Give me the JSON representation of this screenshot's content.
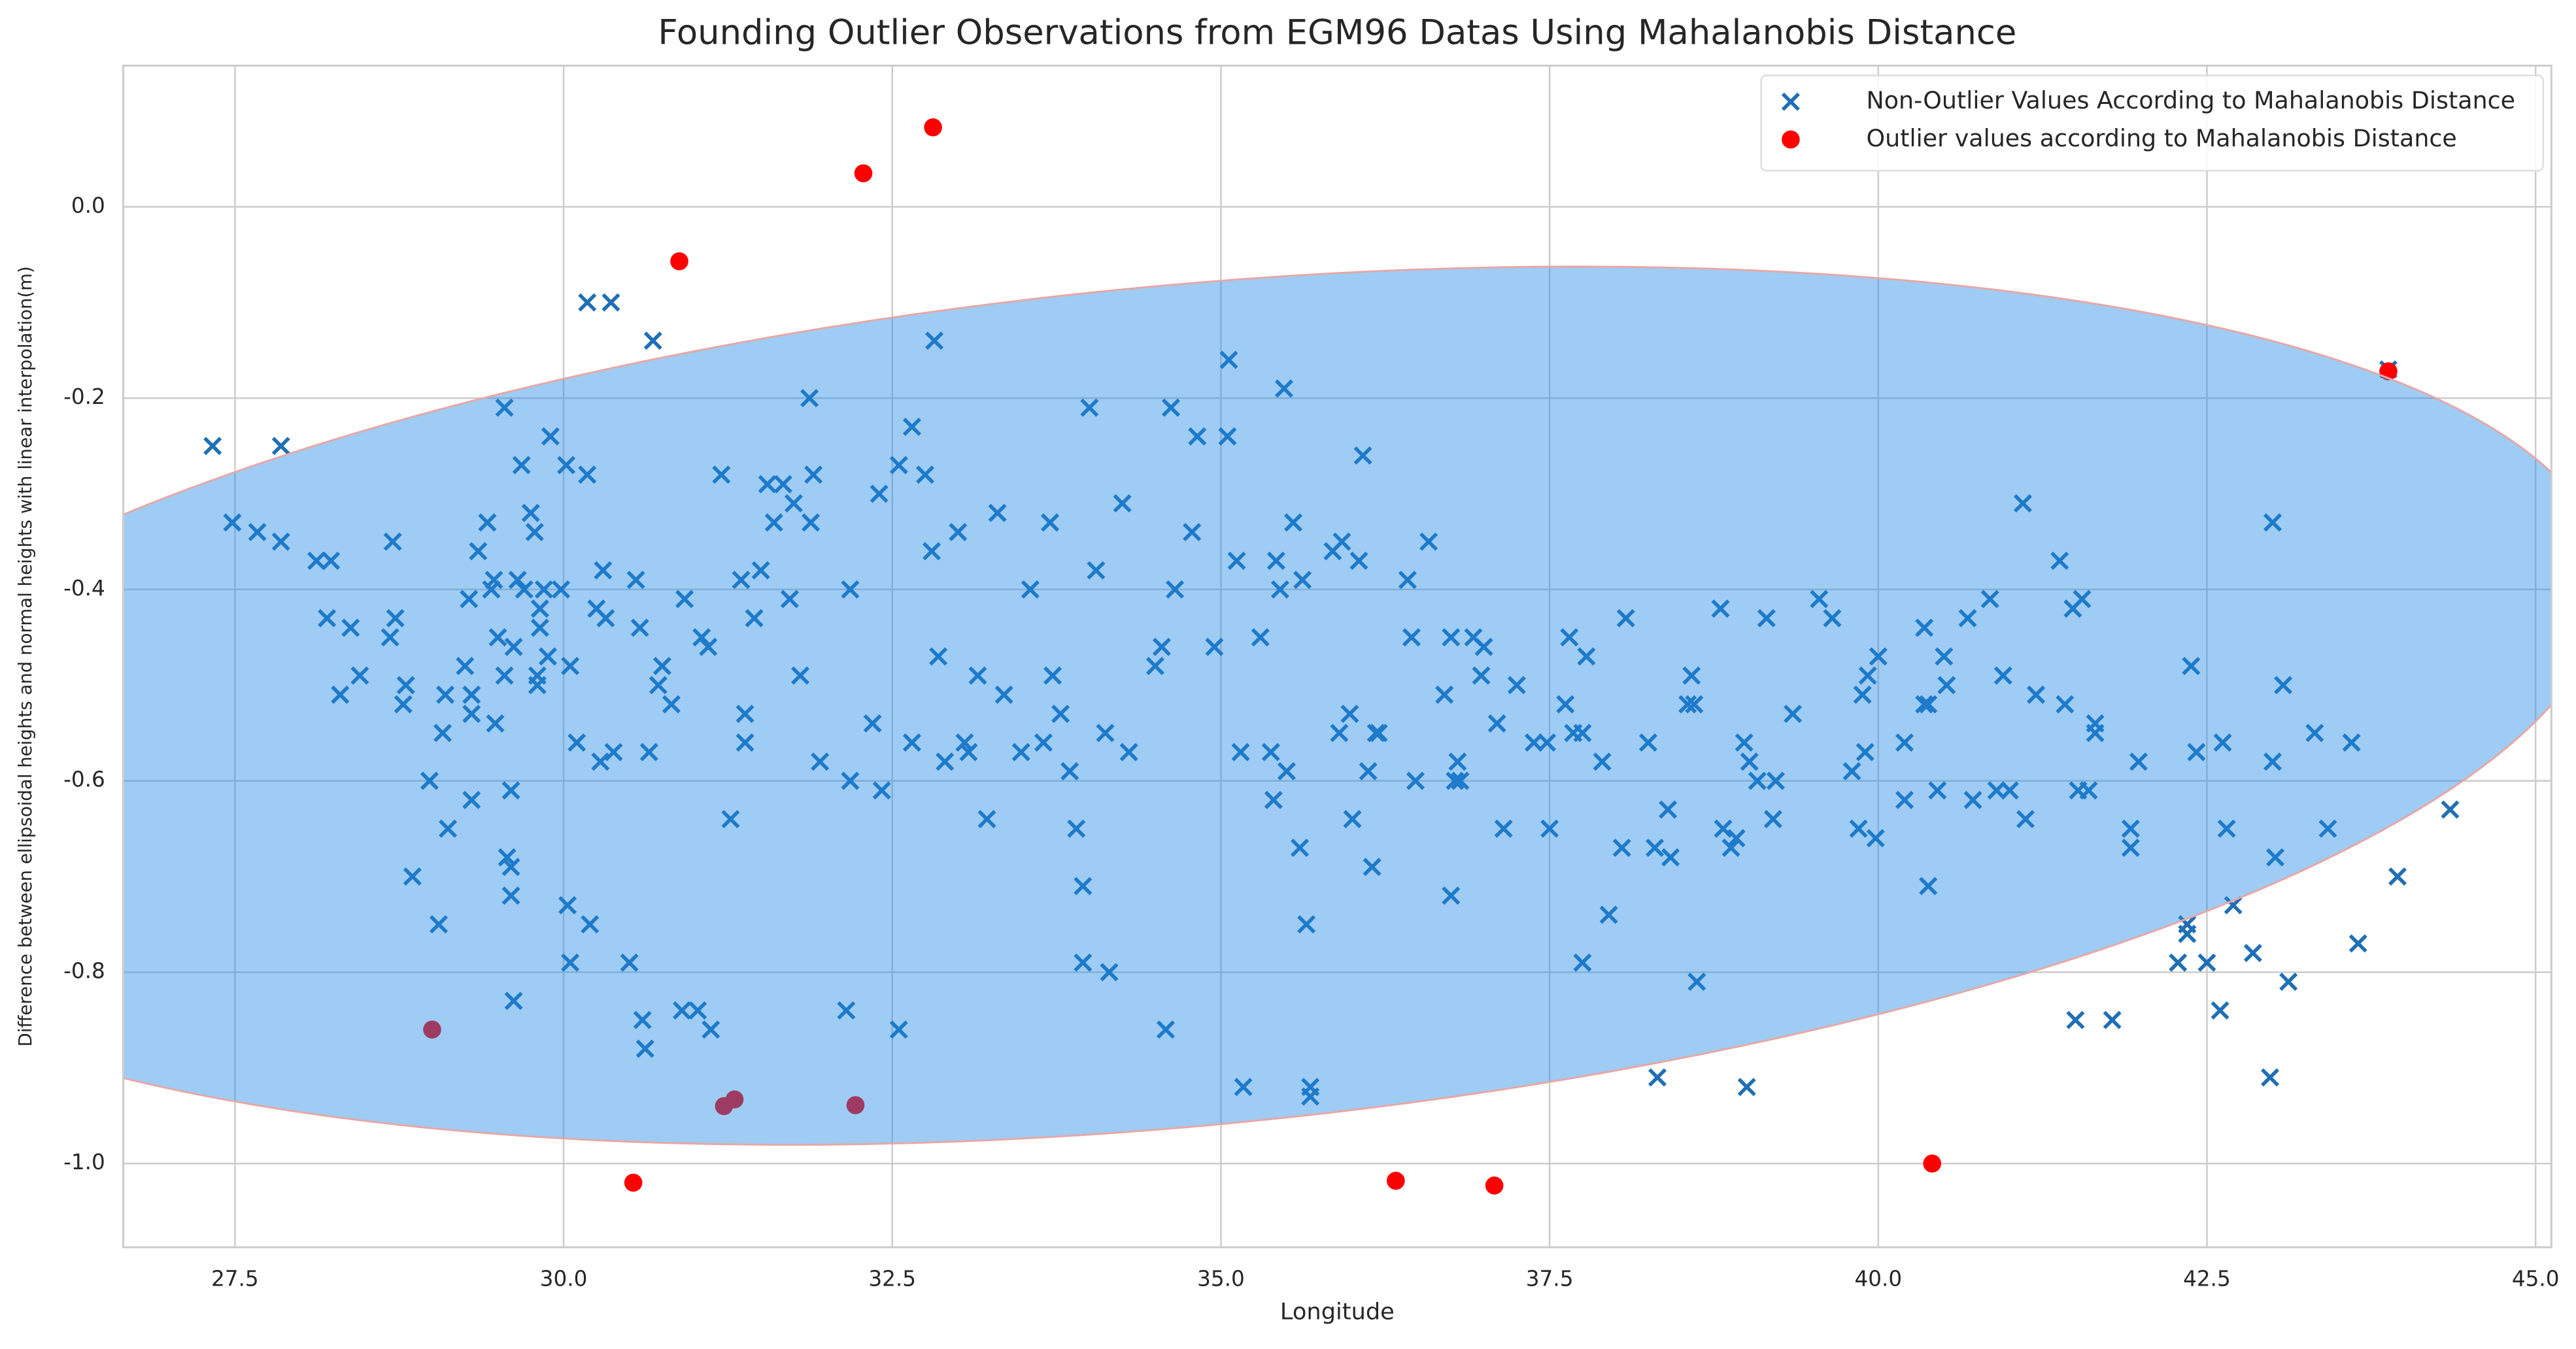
{
  "chart_data": {
    "type": "scatter",
    "title": "Founding Outlier Observations from EGM96 Datas Using Mahalanobis Distance",
    "xlabel": "Longitude",
    "ylabel": "Difference between ellipsoidal heights and normal heights with linear interpolation(m)",
    "xlim": [
      26.65,
      45.12
    ],
    "ylim": [
      -1.0875,
      0.1475
    ],
    "xticks": [
      27.5,
      {
        "value": 30,
        "label": "30.0"
      },
      32.5,
      {
        "value": 35,
        "label": "35.0"
      },
      37.5,
      {
        "value": 40,
        "label": "40.0"
      },
      42.5,
      {
        "value": 45,
        "label": "45.0"
      }
    ],
    "yticks": [
      {
        "value": 0,
        "label": "0.0"
      },
      -0.2,
      -0.4,
      -0.6,
      -0.8,
      {
        "value": -1,
        "label": "-1.0"
      }
    ],
    "grid": true,
    "legend": "upper right",
    "series": [
      {
        "name": "Non-Outlier Values According to Mahalanobis Distance",
        "color": "#1f6fb5",
        "marker": "x",
        "x": [
          27.33,
          27.48,
          27.67,
          27.85,
          27.85,
          28.12,
          28.2,
          28.23,
          28.3,
          28.38,
          28.45,
          28.68,
          28.7,
          28.72,
          28.78,
          28.8,
          28.85,
          28.98,
          29.05,
          29.08,
          29.1,
          29.12,
          29.25,
          29.28,
          29.3,
          29.3,
          29.3,
          29.35,
          29.42,
          29.45,
          29.47,
          29.48,
          29.5,
          29.55,
          29.55,
          29.57,
          29.6,
          29.6,
          29.6,
          29.62,
          29.62,
          29.65,
          29.68,
          29.7,
          29.75,
          29.78,
          29.8,
          29.8,
          29.82,
          29.82,
          29.85,
          29.88,
          29.9,
          29.98,
          30.02,
          30.03,
          30.05,
          30.05,
          30.1,
          30.18,
          30.18,
          30.2,
          30.25,
          30.28,
          30.3,
          30.32,
          30.36,
          30.38,
          30.5,
          30.55,
          30.58,
          30.6,
          30.62,
          30.65,
          30.68,
          30.72,
          30.75,
          30.82,
          30.9,
          30.92,
          31.02,
          31.05,
          31.1,
          31.12,
          31.2,
          31.27,
          31.35,
          31.38,
          31.38,
          31.45,
          31.5,
          31.55,
          31.6,
          31.67,
          31.72,
          31.75,
          31.8,
          31.87,
          31.88,
          31.9,
          31.95,
          32.15,
          32.18,
          32.18,
          32.35,
          32.4,
          32.42,
          32.55,
          32.55,
          32.65,
          32.65,
          32.75,
          32.8,
          32.82,
          32.85,
          32.9,
          33.0,
          33.05,
          33.08,
          33.15,
          33.22,
          33.3,
          33.35,
          33.48,
          33.55,
          33.65,
          33.7,
          33.72,
          33.78,
          33.85,
          33.9,
          33.95,
          33.95,
          34.0,
          34.05,
          34.12,
          34.15,
          34.25,
          34.3,
          34.5,
          34.55,
          34.58,
          34.62,
          34.65,
          34.78,
          34.82,
          34.95,
          35.06,
          35.05,
          35.12,
          35.15,
          35.17,
          35.3,
          35.38,
          35.4,
          35.42,
          35.45,
          35.48,
          35.5,
          35.55,
          35.6,
          35.62,
          35.65,
          35.68,
          35.68,
          35.85,
          35.9,
          35.92,
          35.98,
          36.0,
          36.05,
          36.08,
          36.12,
          36.15,
          36.18,
          36.2,
          36.42,
          36.45,
          36.48,
          36.58,
          36.7,
          36.75,
          36.78,
          36.8,
          36.82,
          36.75,
          36.92,
          37.0,
          36.98,
          37.1,
          37.15,
          37.25,
          37.38,
          37.48,
          37.5,
          37.62,
          37.68,
          37.65,
          37.75,
          37.78,
          37.75,
          37.9,
          37.95,
          38.05,
          38.08,
          38.25,
          38.3,
          38.32,
          38.4,
          38.42,
          38.55,
          38.58,
          38.6,
          38.62,
          38.8,
          38.82,
          38.88,
          38.92,
          38.98,
          39.0,
          39.02,
          39.08,
          39.15,
          39.2,
          39.22,
          39.35,
          39.55,
          39.65,
          39.8,
          39.85,
          39.88,
          39.9,
          39.92,
          39.98,
          40.0,
          40.2,
          40.2,
          40.35,
          40.35,
          40.38,
          40.38,
          40.45,
          40.5,
          40.52,
          40.68,
          40.72,
          40.85,
          40.9,
          40.95,
          41.0,
          41.1,
          41.12,
          41.2,
          41.38,
          41.42,
          41.48,
          41.5,
          41.52,
          41.55,
          41.6,
          41.65,
          41.65,
          41.78,
          41.92,
          41.92,
          41.98,
          42.28,
          42.35,
          42.35,
          42.38,
          42.42,
          42.5,
          42.6,
          42.62,
          42.65,
          42.7,
          42.85,
          42.98,
          43.0,
          43.0,
          43.02,
          43.08,
          43.12,
          43.32,
          43.42,
          43.6,
          43.65,
          43.95,
          44.35,
          43.88
        ],
        "y": [
          -0.25,
          -0.33,
          -0.34,
          -0.25,
          -0.35,
          -0.37,
          -0.43,
          -0.37,
          -0.51,
          -0.44,
          -0.49,
          -0.45,
          -0.35,
          -0.43,
          -0.52,
          -0.5,
          -0.7,
          -0.6,
          -0.75,
          -0.55,
          -0.51,
          -0.65,
          -0.48,
          -0.41,
          -0.53,
          -0.51,
          -0.62,
          -0.36,
          -0.33,
          -0.4,
          -0.39,
          -0.54,
          -0.45,
          -0.21,
          -0.49,
          -0.68,
          -0.61,
          -0.69,
          -0.72,
          -0.83,
          -0.46,
          -0.39,
          -0.27,
          -0.4,
          -0.32,
          -0.34,
          -0.49,
          -0.5,
          -0.42,
          -0.44,
          -0.4,
          -0.47,
          -0.24,
          -0.4,
          -0.27,
          -0.73,
          -0.79,
          -0.48,
          -0.56,
          -0.1,
          -0.28,
          -0.75,
          -0.42,
          -0.58,
          -0.38,
          -0.43,
          -0.1,
          -0.57,
          -0.79,
          -0.39,
          -0.44,
          -0.85,
          -0.88,
          -0.57,
          -0.14,
          -0.5,
          -0.48,
          -0.52,
          -0.84,
          -0.41,
          -0.84,
          -0.45,
          -0.46,
          -0.86,
          -0.28,
          -0.64,
          -0.39,
          -0.53,
          -0.56,
          -0.43,
          -0.38,
          -0.29,
          -0.33,
          -0.29,
          -0.41,
          -0.31,
          -0.49,
          -0.2,
          -0.33,
          -0.28,
          -0.58,
          -0.84,
          -0.4,
          -0.6,
          -0.54,
          -0.3,
          -0.61,
          -0.86,
          -0.27,
          -0.23,
          -0.56,
          -0.28,
          -0.36,
          -0.14,
          -0.47,
          -0.58,
          -0.34,
          -0.56,
          -0.57,
          -0.49,
          -0.64,
          -0.32,
          -0.51,
          -0.57,
          -0.4,
          -0.56,
          -0.33,
          -0.49,
          -0.53,
          -0.59,
          -0.65,
          -0.71,
          -0.79,
          -0.21,
          -0.38,
          -0.55,
          -0.8,
          -0.31,
          -0.57,
          -0.48,
          -0.46,
          -0.86,
          -0.21,
          -0.4,
          -0.34,
          -0.24,
          -0.46,
          -0.16,
          -0.24,
          -0.37,
          -0.57,
          -0.92,
          -0.45,
          -0.57,
          -0.62,
          -0.37,
          -0.4,
          -0.19,
          -0.59,
          -0.33,
          -0.67,
          -0.39,
          -0.75,
          -0.93,
          -0.92,
          -0.36,
          -0.55,
          -0.35,
          -0.53,
          -0.64,
          -0.37,
          -0.26,
          -0.59,
          -0.69,
          -0.55,
          -0.55,
          -0.39,
          -0.45,
          -0.6,
          -0.35,
          -0.51,
          -0.45,
          -0.6,
          -0.58,
          -0.6,
          -0.72,
          -0.45,
          -0.46,
          -0.49,
          -0.54,
          -0.65,
          -0.5,
          -0.56,
          -0.56,
          -0.65,
          -0.52,
          -0.55,
          -0.45,
          -0.79,
          -0.47,
          -0.55,
          -0.58,
          -0.74,
          -0.67,
          -0.43,
          -0.56,
          -0.67,
          -0.91,
          -0.63,
          -0.68,
          -0.52,
          -0.49,
          -0.52,
          -0.81,
          -0.42,
          -0.65,
          -0.67,
          -0.66,
          -0.56,
          -0.92,
          -0.58,
          -0.6,
          -0.43,
          -0.64,
          -0.6,
          -0.53,
          -0.41,
          -0.43,
          -0.59,
          -0.65,
          -0.51,
          -0.57,
          -0.49,
          -0.66,
          -0.47,
          -0.56,
          -0.62,
          -0.44,
          -0.52,
          -0.71,
          -0.52,
          -0.61,
          -0.47,
          -0.5,
          -0.43,
          -0.62,
          -0.41,
          -0.61,
          -0.49,
          -0.61,
          -0.31,
          -0.64,
          -0.51,
          -0.37,
          -0.52,
          -0.42,
          -0.85,
          -0.61,
          -0.41,
          -0.61,
          -0.54,
          -0.55,
          -0.85,
          -0.65,
          -0.67,
          -0.58,
          -0.79,
          -0.75,
          -0.76,
          -0.48,
          -0.57,
          -0.79,
          -0.84,
          -0.56,
          -0.65,
          -0.73,
          -0.78,
          -0.91,
          -0.33,
          -0.58,
          -0.68,
          -0.5,
          -0.81,
          -0.55,
          -0.65,
          -0.56,
          -0.77,
          -0.7,
          -0.63,
          -0.17
        ]
      },
      {
        "name": "Outlier values according to Mahalanobis Distance",
        "color": "#ff0000",
        "marker": "o",
        "x": [
          30.88,
          32.28,
          32.81,
          43.88,
          29.0,
          31.22,
          31.3,
          32.22,
          30.53,
          36.33,
          37.08,
          40.41
        ],
        "y": [
          -0.057,
          0.035,
          0.083,
          -0.172,
          -0.86,
          -0.94,
          -0.933,
          -0.939,
          -1.02,
          -1.018,
          -1.023,
          -1.0
        ]
      }
    ]
  }
}
